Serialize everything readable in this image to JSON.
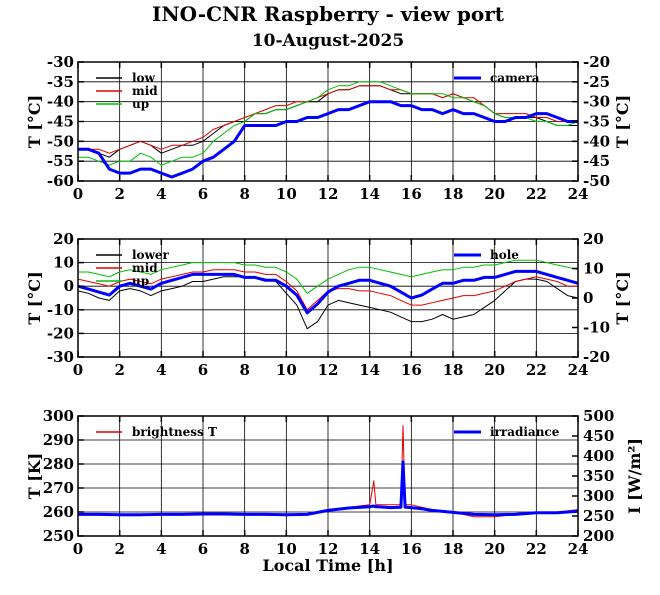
{
  "title": "INO-CNR Raspberry - view port",
  "subtitle": "10-August-2025",
  "chart_data": [
    {
      "type": "line",
      "xlabel": "",
      "ylabel": "T [°C]",
      "ylabel_right": "T [°C]",
      "xlim": [
        0,
        24
      ],
      "ylim": [
        -60,
        -30
      ],
      "ylim_right": [
        -50,
        -20
      ],
      "x_ticks": [
        "0",
        "2",
        "4",
        "6",
        "8",
        "10",
        "12",
        "14",
        "16",
        "18",
        "20",
        "22",
        "24"
      ],
      "y_ticks": [
        "-30",
        "-35",
        "-40",
        "-45",
        "-50",
        "-55",
        "-60"
      ],
      "y_ticks_right": [
        "-20",
        "-25",
        "-30",
        "-35",
        "-40",
        "-45",
        "-50"
      ],
      "grid": true,
      "legend_left": [
        "low",
        "mid",
        "up"
      ],
      "legend_right": [
        "camera"
      ],
      "series": [
        {
          "name": "low",
          "color": "#000000",
          "axis": "left",
          "x": [
            0,
            0.5,
            1,
            1.5,
            2,
            2.5,
            3,
            3.5,
            4,
            4.5,
            5,
            5.5,
            6,
            6.5,
            7,
            7.5,
            8,
            8.5,
            9,
            9.5,
            10,
            10.5,
            11,
            11.5,
            12,
            12.5,
            13,
            13.5,
            14,
            14.5,
            15,
            15.5,
            16,
            16.5,
            17,
            17.5,
            18,
            18.5,
            19,
            19.5,
            20,
            20.5,
            21,
            21.5,
            22,
            22.5,
            23,
            23.5,
            24
          ],
          "y": [
            -52,
            -52,
            -53,
            -54,
            -52,
            -51,
            -50,
            -51,
            -53,
            -52,
            -51,
            -51,
            -50,
            -48,
            -46,
            -45,
            -45,
            -43,
            -43,
            -42,
            -42,
            -41,
            -40,
            -40,
            -38,
            -37,
            -37,
            -36,
            -36,
            -36,
            -37,
            -38,
            -38,
            -38,
            -38,
            -39,
            -38,
            -39,
            -40,
            -41,
            -43,
            -44,
            -44,
            -44,
            -44,
            -45,
            -46,
            -46,
            -46
          ]
        },
        {
          "name": "mid",
          "color": "#e00000",
          "axis": "left",
          "x": [
            0,
            0.5,
            1,
            1.5,
            2,
            2.5,
            3,
            3.5,
            4,
            4.5,
            5,
            5.5,
            6,
            6.5,
            7,
            7.5,
            8,
            8.5,
            9,
            9.5,
            10,
            10.5,
            11,
            11.5,
            12,
            12.5,
            13,
            13.5,
            14,
            14.5,
            15,
            15.5,
            16,
            16.5,
            17,
            17.5,
            18,
            18.5,
            19,
            19.5,
            20,
            20.5,
            21,
            21.5,
            22,
            22.5,
            23,
            23.5,
            24
          ],
          "y": [
            -52,
            -52,
            -52,
            -53,
            -52,
            -51,
            -50,
            -51,
            -52,
            -51,
            -51,
            -50,
            -49,
            -47,
            -46,
            -45,
            -44,
            -43,
            -42,
            -41,
            -41,
            -40,
            -40,
            -39,
            -38,
            -37,
            -37,
            -36,
            -36,
            -36,
            -37,
            -37,
            -38,
            -38,
            -38,
            -39,
            -38,
            -39,
            -39,
            -41,
            -43,
            -43,
            -43,
            -43,
            -44,
            -44,
            -45,
            -45,
            -45
          ]
        },
        {
          "name": "up",
          "color": "#00c000",
          "axis": "left",
          "x": [
            0,
            0.5,
            1,
            1.5,
            2,
            2.5,
            3,
            3.5,
            4,
            4.5,
            5,
            5.5,
            6,
            6.5,
            7,
            7.5,
            8,
            8.5,
            9,
            9.5,
            10,
            10.5,
            11,
            11.5,
            12,
            12.5,
            13,
            13.5,
            14,
            14.5,
            15,
            15.5,
            16,
            16.5,
            17,
            17.5,
            18,
            18.5,
            19,
            19.5,
            20,
            20.5,
            21,
            21.5,
            22,
            22.5,
            23,
            23.5,
            24
          ],
          "y": [
            -54,
            -54,
            -55,
            -56,
            -55,
            -55,
            -53,
            -54,
            -56,
            -55,
            -54,
            -54,
            -53,
            -50,
            -48,
            -46,
            -45,
            -43,
            -43,
            -42,
            -42,
            -41,
            -40,
            -39,
            -37,
            -36,
            -36,
            -35,
            -35,
            -35,
            -36,
            -37,
            -38,
            -38,
            -38,
            -38,
            -39,
            -39,
            -40,
            -41,
            -43,
            -44,
            -44,
            -44,
            -45,
            -45,
            -46,
            -46,
            -45
          ]
        },
        {
          "name": "camera",
          "color": "#0000ff",
          "axis": "right",
          "x": [
            0,
            0.5,
            1,
            1.5,
            2,
            2.5,
            3,
            3.5,
            4,
            4.5,
            5,
            5.5,
            6,
            6.5,
            7,
            7.5,
            8,
            8.5,
            9,
            9.5,
            10,
            10.5,
            11,
            11.5,
            12,
            12.5,
            13,
            13.5,
            14,
            14.5,
            15,
            15.5,
            16,
            16.5,
            17,
            17.5,
            18,
            18.5,
            19,
            19.5,
            20,
            20.5,
            21,
            21.5,
            22,
            22.5,
            23,
            23.5,
            24
          ],
          "y": [
            -42,
            -42,
            -43,
            -47,
            -48,
            -48,
            -47,
            -47,
            -48,
            -49,
            -48,
            -47,
            -45,
            -44,
            -42,
            -40,
            -36,
            -36,
            -36,
            -36,
            -35,
            -35,
            -34,
            -34,
            -33,
            -32,
            -32,
            -31,
            -30,
            -30,
            -30,
            -31,
            -31,
            -32,
            -32,
            -33,
            -32,
            -33,
            -33,
            -34,
            -35,
            -35,
            -34,
            -34,
            -33,
            -33,
            -34,
            -35,
            -35
          ]
        }
      ]
    },
    {
      "type": "line",
      "xlabel": "",
      "ylabel": "T [°C]",
      "ylabel_right": "T [°C]",
      "xlim": [
        0,
        24
      ],
      "ylim": [
        -30,
        20
      ],
      "ylim_right": [
        -20,
        20
      ],
      "x_ticks": [
        "0",
        "2",
        "4",
        "6",
        "8",
        "10",
        "12",
        "14",
        "16",
        "18",
        "20",
        "22",
        "24"
      ],
      "y_ticks": [
        "20",
        "10",
        "0",
        "-10",
        "-20",
        "-30"
      ],
      "y_ticks_right": [
        "20",
        "10",
        "0",
        "-10",
        "-20"
      ],
      "grid": true,
      "legend_left": [
        "lower",
        "mid",
        "up"
      ],
      "legend_right": [
        "hole"
      ],
      "series": [
        {
          "name": "lower",
          "color": "#000000",
          "axis": "left",
          "x": [
            0,
            0.5,
            1,
            1.5,
            2,
            2.5,
            3,
            3.5,
            4,
            4.5,
            5,
            5.5,
            6,
            6.5,
            7,
            7.5,
            8,
            8.5,
            9,
            9.5,
            10,
            10.5,
            11,
            11.5,
            12,
            12.5,
            13,
            13.5,
            14,
            14.5,
            15,
            15.5,
            16,
            16.5,
            17,
            17.5,
            18,
            18.5,
            19,
            19.5,
            20,
            20.5,
            21,
            21.5,
            22,
            22.5,
            23,
            23.5,
            24
          ],
          "y": [
            -2,
            -3,
            -5,
            -6,
            -2,
            -1,
            -2,
            -4,
            -2,
            -1,
            0,
            2,
            2,
            3,
            4,
            4,
            4,
            4,
            3,
            2,
            -3,
            -8,
            -18,
            -15,
            -8,
            -6,
            -7,
            -8,
            -9,
            -10,
            -11,
            -13,
            -15,
            -15,
            -14,
            -12,
            -14,
            -13,
            -12,
            -9,
            -6,
            -2,
            2,
            3,
            3,
            2,
            -1,
            -4,
            -5
          ]
        },
        {
          "name": "mid",
          "color": "#e00000",
          "axis": "left",
          "x": [
            0,
            0.5,
            1,
            1.5,
            2,
            2.5,
            3,
            3.5,
            4,
            4.5,
            5,
            5.5,
            6,
            6.5,
            7,
            7.5,
            8,
            8.5,
            9,
            9.5,
            10,
            10.5,
            11,
            11.5,
            12,
            12.5,
            13,
            13.5,
            14,
            14.5,
            15,
            15.5,
            16,
            16.5,
            17,
            17.5,
            18,
            18.5,
            19,
            19.5,
            20,
            20.5,
            21,
            21.5,
            22,
            22.5,
            23,
            23.5,
            24
          ],
          "y": [
            3,
            2,
            1,
            0,
            2,
            3,
            2,
            1,
            3,
            4,
            5,
            6,
            6,
            7,
            7,
            7,
            6,
            6,
            5,
            5,
            2,
            -2,
            -10,
            -6,
            -2,
            -1,
            -1,
            -2,
            -2,
            -3,
            -4,
            -6,
            -8,
            -8,
            -7,
            -6,
            -5,
            -4,
            -4,
            -3,
            -2,
            0,
            2,
            3,
            4,
            3,
            2,
            0,
            0
          ]
        },
        {
          "name": "up",
          "color": "#00c000",
          "axis": "left",
          "x": [
            0,
            0.5,
            1,
            1.5,
            2,
            2.5,
            3,
            3.5,
            4,
            4.5,
            5,
            5.5,
            6,
            6.5,
            7,
            7.5,
            8,
            8.5,
            9,
            9.5,
            10,
            10.5,
            11,
            11.5,
            12,
            12.5,
            13,
            13.5,
            14,
            14.5,
            15,
            15.5,
            16,
            16.5,
            17,
            17.5,
            18,
            18.5,
            19,
            19.5,
            20,
            20.5,
            21,
            21.5,
            22,
            22.5,
            23,
            23.5,
            24
          ],
          "y": [
            6,
            6,
            5,
            4,
            6,
            7,
            6,
            5,
            7,
            8,
            9,
            10,
            10,
            10,
            10,
            10,
            9,
            9,
            8,
            8,
            6,
            3,
            -3,
            0,
            3,
            5,
            7,
            8,
            8,
            7,
            6,
            5,
            4,
            5,
            6,
            7,
            7,
            8,
            8,
            9,
            9,
            10,
            11,
            11,
            11,
            10,
            9,
            8,
            7
          ]
        },
        {
          "name": "hole",
          "color": "#0000ff",
          "axis": "right",
          "x": [
            0,
            0.5,
            1,
            1.5,
            2,
            2.5,
            3,
            3.5,
            4,
            4.5,
            5,
            5.5,
            6,
            6.5,
            7,
            7.5,
            8,
            8.5,
            9,
            9.5,
            10,
            10.5,
            11,
            11.5,
            12,
            12.5,
            13,
            13.5,
            14,
            14.5,
            15,
            15.5,
            16,
            16.5,
            17,
            17.5,
            18,
            18.5,
            19,
            19.5,
            20,
            20.5,
            21,
            21.5,
            22,
            22.5,
            23,
            23.5,
            24
          ],
          "y": [
            4,
            3,
            2,
            1,
            4,
            5,
            4,
            3,
            5,
            6,
            7,
            8,
            8,
            8,
            8,
            8,
            7,
            7,
            6,
            6,
            4,
            1,
            -5,
            -2,
            2,
            4,
            5,
            6,
            6,
            5,
            4,
            2,
            0,
            1,
            3,
            5,
            5,
            6,
            6,
            7,
            7,
            8,
            9,
            9,
            9,
            8,
            7,
            6,
            5
          ]
        }
      ]
    },
    {
      "type": "line",
      "xlabel": "Local Time [h]",
      "ylabel": "T [K]",
      "ylabel_right": "I [W/m²]",
      "xlim": [
        0,
        24
      ],
      "ylim": [
        250,
        300
      ],
      "ylim_right": [
        200,
        500
      ],
      "x_ticks": [
        "0",
        "2",
        "4",
        "6",
        "8",
        "10",
        "12",
        "14",
        "16",
        "18",
        "20",
        "22",
        "24"
      ],
      "y_ticks": [
        "300",
        "290",
        "280",
        "270",
        "260",
        "250"
      ],
      "y_ticks_right": [
        "500",
        "450",
        "400",
        "350",
        "300",
        "250",
        "200"
      ],
      "grid": true,
      "legend_left": [
        "brightness T"
      ],
      "legend_right": [
        "irradiance"
      ],
      "series": [
        {
          "name": "brightness T",
          "color": "#e00000",
          "axis": "left",
          "x": [
            0,
            1,
            2,
            3,
            4,
            5,
            6,
            7,
            8,
            9,
            10,
            11,
            12,
            13,
            14,
            14.2,
            14.3,
            14.4,
            15,
            15.5,
            15.6,
            15.7,
            15.8,
            16,
            16.5,
            17,
            18,
            19,
            20,
            21,
            22,
            23,
            24
          ],
          "y": [
            259,
            259,
            258.5,
            258.5,
            259,
            259,
            259,
            259,
            259,
            259,
            258.5,
            259,
            261,
            262,
            263,
            273,
            263,
            263,
            263,
            263,
            296,
            263,
            263,
            263,
            262,
            261,
            260,
            258,
            258,
            259,
            260,
            260,
            261
          ]
        },
        {
          "name": "irradiance",
          "color": "#0000ff",
          "axis": "right",
          "x": [
            0,
            1,
            2,
            3,
            4,
            5,
            6,
            7,
            8,
            9,
            10,
            11,
            12,
            13,
            14,
            14.2,
            14.3,
            14.4,
            15,
            15.5,
            15.6,
            15.7,
            15.8,
            16,
            16.5,
            17,
            18,
            19,
            20,
            21,
            22,
            23,
            24
          ],
          "y": [
            254,
            254,
            253,
            253,
            254,
            254,
            255,
            255,
            254,
            254,
            253,
            254,
            264,
            270,
            273,
            275,
            273,
            273,
            271,
            272,
            385,
            272,
            272,
            271,
            268,
            264,
            259,
            254,
            253,
            254,
            258,
            258,
            262
          ]
        }
      ]
    }
  ]
}
